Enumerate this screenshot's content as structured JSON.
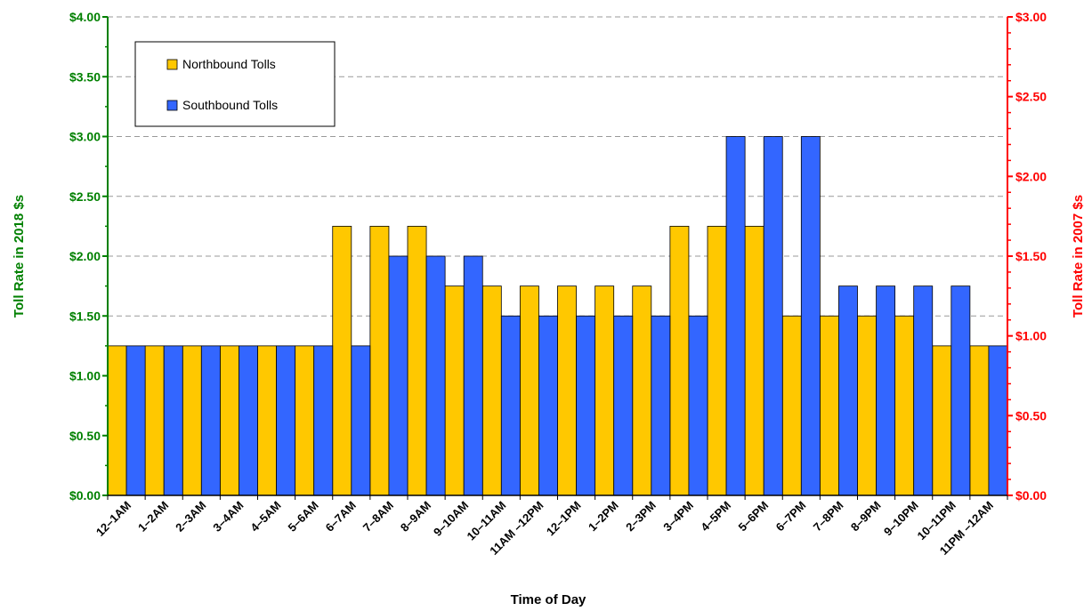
{
  "chart_data": {
    "type": "bar",
    "title": "",
    "xlabel": "Time of Day",
    "ylabel": "Toll Rate in 2018 $s",
    "ylabel_right": "Toll Rate in 2007 $s",
    "ylim": [
      0,
      4
    ],
    "ylim_right": [
      0,
      3
    ],
    "yticks": [
      "$0.00",
      "$0.50",
      "$1.00",
      "$1.50",
      "$2.00",
      "$2.50",
      "$3.00",
      "$3.50",
      "$4.00"
    ],
    "yticks_right": [
      "$0.00",
      "$0.50",
      "$1.00",
      "$1.50",
      "$2.00",
      "$2.50",
      "$3.00"
    ],
    "grid": true,
    "legend_position": "top-left",
    "categories": [
      "12–1AM",
      "1–2AM",
      "2–3AM",
      "3–4AM",
      "4–5AM",
      "5–6AM",
      "6–7AM",
      "7–8AM",
      "8–9AM",
      "9–10AM",
      "10–11AM",
      "11AM –12PM",
      "12–1PM",
      "1–2PM",
      "2–3PM",
      "3–4PM",
      "4–5PM",
      "5–6PM",
      "6–7PM",
      "7–8PM",
      "8–9PM",
      "9–10PM",
      "10–11PM",
      "11PM –12AM"
    ],
    "series": [
      {
        "name": "Northbound Tolls",
        "color": "#FFC800",
        "values": [
          1.25,
          1.25,
          1.25,
          1.25,
          1.25,
          1.25,
          2.25,
          2.25,
          2.25,
          1.75,
          1.75,
          1.75,
          1.75,
          1.75,
          1.75,
          2.25,
          2.25,
          2.25,
          1.5,
          1.5,
          1.5,
          1.5,
          1.25,
          1.25
        ]
      },
      {
        "name": "Southbound Tolls",
        "color": "#3366FF",
        "values": [
          1.25,
          1.25,
          1.25,
          1.25,
          1.25,
          1.25,
          1.25,
          2.0,
          2.0,
          2.0,
          1.5,
          1.5,
          1.5,
          1.5,
          1.5,
          1.5,
          3.0,
          3.0,
          3.0,
          1.75,
          1.75,
          1.75,
          1.75,
          1.25
        ]
      }
    ],
    "colors": {
      "left_axis": "#008000",
      "right_axis": "#FF0000",
      "grid": "#999999"
    }
  }
}
